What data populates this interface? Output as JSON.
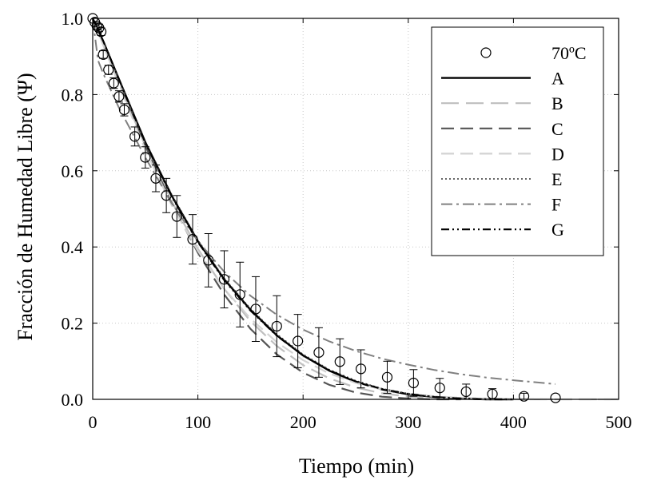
{
  "chart_data": {
    "type": "line",
    "xlabel": "Tiempo (min)",
    "ylabel": "Fracción de Humedad Libre (Ψ)",
    "xlim": [
      0,
      500
    ],
    "ylim": [
      0,
      1.0
    ],
    "x_ticks": [
      0,
      100,
      200,
      300,
      400,
      500
    ],
    "y_ticks": [
      0.0,
      0.2,
      0.4,
      0.6,
      0.8,
      1.0
    ],
    "x_tick_labels": [
      "0",
      "100",
      "200",
      "300",
      "400",
      "500"
    ],
    "y_tick_labels": [
      "0.0",
      "0.2",
      "0.4",
      "0.6",
      "0.8",
      "1.0"
    ],
    "grid": true,
    "legend_position": "top-right",
    "observed": {
      "name": "70ºC",
      "points": [
        {
          "x": 0,
          "y": 1.0,
          "err": 0
        },
        {
          "x": 2,
          "y": 0.99,
          "err": 0.005
        },
        {
          "x": 4,
          "y": 0.98,
          "err": 0.008
        },
        {
          "x": 6,
          "y": 0.975,
          "err": 0.01
        },
        {
          "x": 8,
          "y": 0.965,
          "err": 0.01
        },
        {
          "x": 10,
          "y": 0.905,
          "err": 0.01
        },
        {
          "x": 15,
          "y": 0.865,
          "err": 0.012
        },
        {
          "x": 20,
          "y": 0.83,
          "err": 0.014
        },
        {
          "x": 25,
          "y": 0.795,
          "err": 0.015
        },
        {
          "x": 30,
          "y": 0.76,
          "err": 0.016
        },
        {
          "x": 40,
          "y": 0.69,
          "err": 0.025
        },
        {
          "x": 50,
          "y": 0.635,
          "err": 0.028
        },
        {
          "x": 60,
          "y": 0.58,
          "err": 0.035
        },
        {
          "x": 70,
          "y": 0.535,
          "err": 0.045
        },
        {
          "x": 80,
          "y": 0.48,
          "err": 0.055
        },
        {
          "x": 95,
          "y": 0.42,
          "err": 0.065
        },
        {
          "x": 110,
          "y": 0.365,
          "err": 0.07
        },
        {
          "x": 125,
          "y": 0.315,
          "err": 0.075
        },
        {
          "x": 140,
          "y": 0.275,
          "err": 0.085
        },
        {
          "x": 155,
          "y": 0.237,
          "err": 0.085
        },
        {
          "x": 175,
          "y": 0.192,
          "err": 0.08
        },
        {
          "x": 195,
          "y": 0.153,
          "err": 0.07
        },
        {
          "x": 215,
          "y": 0.123,
          "err": 0.065
        },
        {
          "x": 235,
          "y": 0.099,
          "err": 0.06
        },
        {
          "x": 255,
          "y": 0.08,
          "err": 0.05
        },
        {
          "x": 280,
          "y": 0.058,
          "err": 0.042
        },
        {
          "x": 305,
          "y": 0.043,
          "err": 0.035
        },
        {
          "x": 330,
          "y": 0.03,
          "err": 0.025
        },
        {
          "x": 355,
          "y": 0.02,
          "err": 0.02
        },
        {
          "x": 380,
          "y": 0.014,
          "err": 0.014
        },
        {
          "x": 410,
          "y": 0.008,
          "err": 0.008
        },
        {
          "x": 440,
          "y": 0.004,
          "err": 0.004
        }
      ]
    },
    "series": [
      {
        "name": "A",
        "color": "#000000",
        "dash": "solid",
        "x": [
          0,
          10,
          25,
          50,
          75,
          100,
          125,
          150,
          175,
          200,
          225,
          250,
          275,
          300,
          325,
          350,
          375,
          400
        ],
        "y": [
          1.0,
          0.94,
          0.84,
          0.675,
          0.535,
          0.415,
          0.315,
          0.235,
          0.168,
          0.115,
          0.075,
          0.046,
          0.026,
          0.013,
          0.006,
          0.002,
          0.0,
          0.0
        ]
      },
      {
        "name": "B",
        "color": "#bfbfbf",
        "dash": "long-dash",
        "x": [
          0,
          10,
          25,
          50,
          75,
          100,
          125,
          150,
          175,
          200,
          225,
          250,
          275,
          300,
          325,
          350,
          375,
          400,
          440,
          500
        ],
        "y": [
          1.0,
          0.93,
          0.83,
          0.665,
          0.52,
          0.395,
          0.29,
          0.205,
          0.14,
          0.09,
          0.055,
          0.031,
          0.016,
          0.007,
          0.003,
          0.001,
          0.0,
          0.0,
          0.0,
          0.0
        ]
      },
      {
        "name": "C",
        "color": "#555555",
        "dash": "dash",
        "x": [
          0,
          10,
          25,
          50,
          75,
          100,
          125,
          150,
          175,
          200,
          225,
          250,
          275,
          300,
          325,
          350
        ],
        "y": [
          1.0,
          0.935,
          0.835,
          0.665,
          0.515,
          0.385,
          0.275,
          0.185,
          0.118,
          0.07,
          0.038,
          0.018,
          0.007,
          0.002,
          0.0,
          0.0
        ]
      },
      {
        "name": "D",
        "color": "#d3d3d3",
        "dash": "dash",
        "x": [
          0,
          10,
          25,
          50,
          75,
          100,
          125,
          150,
          175,
          200,
          225,
          250,
          275,
          300,
          325,
          350,
          375,
          400,
          450,
          500
        ],
        "y": [
          1.0,
          0.93,
          0.825,
          0.655,
          0.51,
          0.39,
          0.29,
          0.212,
          0.15,
          0.103,
          0.068,
          0.043,
          0.026,
          0.015,
          0.008,
          0.004,
          0.002,
          0.001,
          0.0,
          0.0
        ]
      },
      {
        "name": "E",
        "color": "#333333",
        "dash": "dot",
        "x": [
          0,
          10,
          25,
          50,
          75,
          100,
          125,
          150,
          175,
          200,
          225,
          250,
          275,
          300,
          325,
          350,
          375,
          400
        ],
        "y": [
          1.0,
          0.94,
          0.842,
          0.677,
          0.538,
          0.418,
          0.318,
          0.238,
          0.171,
          0.118,
          0.078,
          0.049,
          0.028,
          0.015,
          0.007,
          0.003,
          0.001,
          0.0
        ]
      },
      {
        "name": "F",
        "color": "#808080",
        "dash": "dash-dot",
        "x": [
          0,
          5,
          10,
          25,
          50,
          75,
          100,
          125,
          150,
          175,
          200,
          225,
          250,
          275,
          300,
          325,
          350,
          375,
          400,
          440
        ],
        "y": [
          1.0,
          0.89,
          0.855,
          0.765,
          0.635,
          0.515,
          0.415,
          0.335,
          0.272,
          0.222,
          0.183,
          0.152,
          0.127,
          0.107,
          0.091,
          0.077,
          0.066,
          0.057,
          0.05,
          0.04
        ]
      },
      {
        "name": "G",
        "color": "#000000",
        "dash": "dash-dot-dot",
        "x": [
          0,
          10,
          25,
          50,
          75,
          100,
          125,
          150,
          175,
          200,
          225,
          250,
          275,
          300,
          325,
          350,
          375,
          400
        ],
        "y": [
          1.0,
          0.94,
          0.84,
          0.673,
          0.533,
          0.413,
          0.313,
          0.233,
          0.167,
          0.115,
          0.076,
          0.047,
          0.027,
          0.014,
          0.006,
          0.002,
          0.0,
          0.0
        ]
      }
    ]
  }
}
